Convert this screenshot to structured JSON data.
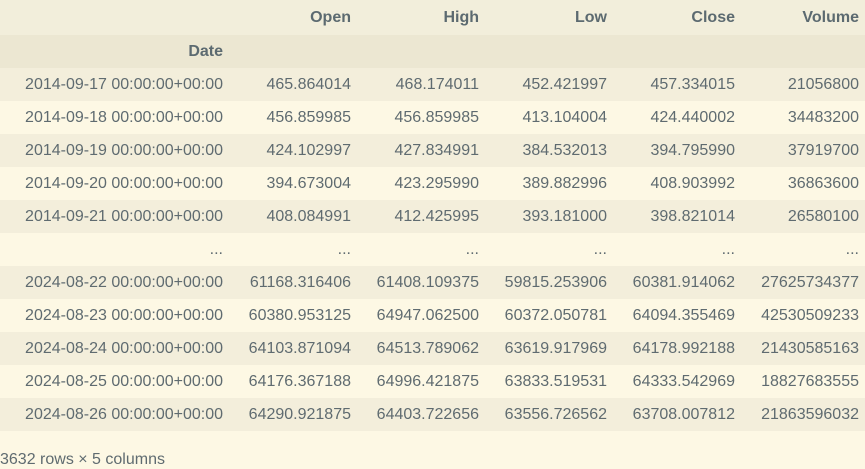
{
  "table": {
    "columns": [
      "Open",
      "High",
      "Low",
      "Close",
      "Volume"
    ],
    "index_name": "Date",
    "rows": [
      {
        "index": "2014-09-17 00:00:00+00:00",
        "values": [
          "465.864014",
          "468.174011",
          "452.421997",
          "457.334015",
          "21056800"
        ]
      },
      {
        "index": "2014-09-18 00:00:00+00:00",
        "values": [
          "456.859985",
          "456.859985",
          "413.104004",
          "424.440002",
          "34483200"
        ]
      },
      {
        "index": "2014-09-19 00:00:00+00:00",
        "values": [
          "424.102997",
          "427.834991",
          "384.532013",
          "394.795990",
          "37919700"
        ]
      },
      {
        "index": "2014-09-20 00:00:00+00:00",
        "values": [
          "394.673004",
          "423.295990",
          "389.882996",
          "408.903992",
          "36863600"
        ]
      },
      {
        "index": "2014-09-21 00:00:00+00:00",
        "values": [
          "408.084991",
          "412.425995",
          "393.181000",
          "398.821014",
          "26580100"
        ]
      },
      {
        "index": "...",
        "values": [
          "...",
          "...",
          "...",
          "...",
          "..."
        ]
      },
      {
        "index": "2024-08-22 00:00:00+00:00",
        "values": [
          "61168.316406",
          "61408.109375",
          "59815.253906",
          "60381.914062",
          "27625734377"
        ]
      },
      {
        "index": "2024-08-23 00:00:00+00:00",
        "values": [
          "60380.953125",
          "64947.062500",
          "60372.050781",
          "64094.355469",
          "42530509233"
        ]
      },
      {
        "index": "2024-08-24 00:00:00+00:00",
        "values": [
          "64103.871094",
          "64513.789062",
          "63619.917969",
          "64178.992188",
          "21430585163"
        ]
      },
      {
        "index": "2024-08-25 00:00:00+00:00",
        "values": [
          "64176.367188",
          "64996.421875",
          "63833.519531",
          "64333.542969",
          "18827683555"
        ]
      },
      {
        "index": "2024-08-26 00:00:00+00:00",
        "values": [
          "64290.921875",
          "64403.722656",
          "63556.726562",
          "63708.007812",
          "21863596032"
        ]
      }
    ]
  },
  "shape_note": "3632 rows × 5 columns",
  "colors": {
    "background": "#fdf8e4",
    "row_stripe": "#f3eedb",
    "header_bg": "#f2eedb",
    "index_name_bg": "#ece7d2",
    "text": "#5f6b70"
  }
}
